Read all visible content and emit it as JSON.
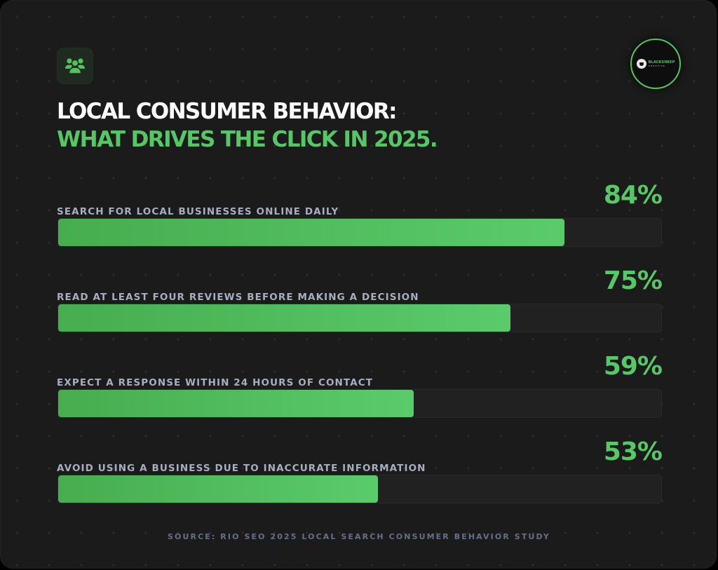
{
  "header": {
    "icon": "users-group-icon",
    "title_line1": "LOCAL CONSUMER BEHAVIOR:",
    "title_line2": "WHAT DRIVES THE CLICK IN 2025.",
    "logo": {
      "name": "BLACKSHEEP",
      "subtext": "CREATIVE"
    }
  },
  "colors": {
    "background": "#1b1b1b",
    "accent": "#55c765",
    "label": "#a6aec0",
    "track": "#212121",
    "source": "#64708a"
  },
  "rows": [
    {
      "label": "SEARCH FOR LOCAL BUSINESSES ONLINE DAILY",
      "value_label": "84%",
      "value": 84
    },
    {
      "label": "READ AT LEAST FOUR REVIEWS BEFORE MAKING A DECISION",
      "value_label": "75%",
      "value": 75
    },
    {
      "label": "EXPECT A RESPONSE WITHIN 24 HOURS OF CONTACT",
      "value_label": "59%",
      "value": 59
    },
    {
      "label": "AVOID USING A BUSINESS DUE TO INACCURATE INFORMATION",
      "value_label": "53%",
      "value": 53
    }
  ],
  "footer": {
    "source": "SOURCE: RIO SEO 2025 LOCAL SEARCH CONSUMER BEHAVIOR STUDY"
  },
  "chart_data": {
    "type": "bar",
    "orientation": "horizontal",
    "title": "LOCAL CONSUMER BEHAVIOR: WHAT DRIVES THE CLICK IN 2025.",
    "categories": [
      "SEARCH FOR LOCAL BUSINESSES ONLINE DAILY",
      "READ AT LEAST FOUR REVIEWS BEFORE MAKING A DECISION",
      "EXPECT A RESPONSE WITHIN 24 HOURS OF CONTACT",
      "AVOID USING A BUSINESS DUE TO INACCURATE INFORMATION"
    ],
    "values": [
      84,
      75,
      59,
      53
    ],
    "unit": "%",
    "xlim": [
      0,
      100
    ],
    "xlabel": "",
    "ylabel": "",
    "grid": false,
    "legend": null,
    "source": "SOURCE: RIO SEO 2025 LOCAL SEARCH CONSUMER BEHAVIOR STUDY"
  }
}
